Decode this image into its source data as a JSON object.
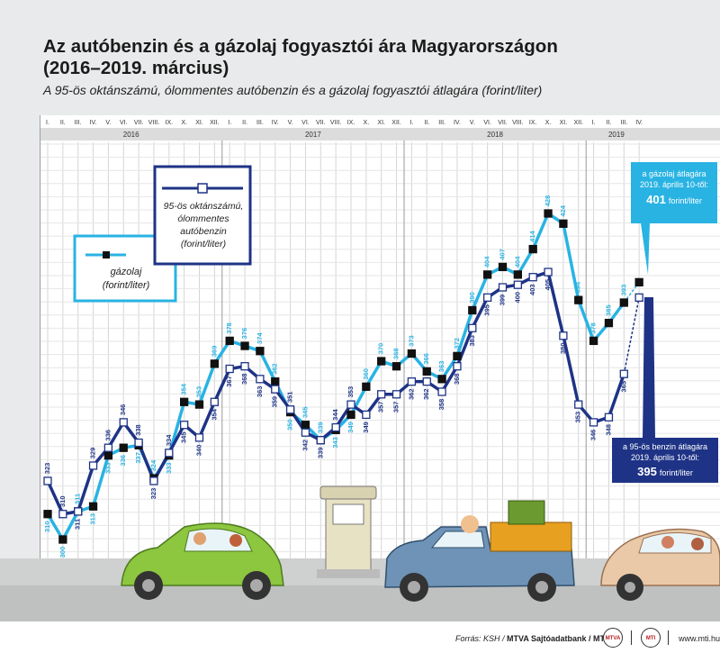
{
  "title": "Az autóbenzin és a gázolaj fogyasztói ára Magyarországon (2016–2019. március)",
  "subtitle": "A 95-ös oktánszámú, ólommentes autóbenzin és a gázolaj fogyasztói átlagára (forint/liter)",
  "months": [
    "I.",
    "II.",
    "III.",
    "IV.",
    "V.",
    "VI.",
    "VII.",
    "VIII.",
    "IX.",
    "X.",
    "XI.",
    "XII."
  ],
  "years": [
    "2016",
    "2017",
    "2018",
    "2019"
  ],
  "legend": {
    "petrol": "95-ös oktánszámú, ólommentes autóbenzin (forint/liter)",
    "diesel": "gázolaj (forint/liter)"
  },
  "callouts": {
    "diesel": {
      "line1": "a gázolaj átlagára",
      "line2": "2019. április 10-től:",
      "value": "401",
      "unit": "forint/liter"
    },
    "petrol": {
      "line1": "a 95-ös benzin átlagára",
      "line2": "2019. április 10-től:",
      "value": "395",
      "unit": "forint/liter"
    }
  },
  "footer": {
    "source_label": "Forrás: KSH / ",
    "source_bold": "MTVA Sajtóadatbank / MTI",
    "web": "www.mti.hu",
    "logo1": "MTVA",
    "logo2": "MTI"
  },
  "colors": {
    "diesel": "#29b3e3",
    "petrol": "#1e3386",
    "year_band": "#dcdcdc",
    "header_band": "#bdbdbd"
  },
  "chart_data": {
    "type": "line",
    "title": "Az autóbenzin és a gázolaj fogyasztói ára Magyarországon (2016–2019. március)",
    "ylabel": "forint/liter",
    "x": [
      "2016-I.",
      "2016-II.",
      "2016-III.",
      "2016-IV.",
      "2016-V.",
      "2016-VI.",
      "2016-VII.",
      "2016-VIII.",
      "2016-IX.",
      "2016-X.",
      "2016-XI.",
      "2016-XII.",
      "2017-I.",
      "2017-II.",
      "2017-III.",
      "2017-IV.",
      "2017-V.",
      "2017-VI.",
      "2017-VII.",
      "2017-VIII.",
      "2017-IX.",
      "2017-X.",
      "2017-XI.",
      "2017-XII.",
      "2018-I.",
      "2018-II.",
      "2018-III.",
      "2018-IV.",
      "2018-V.",
      "2018-VI.",
      "2018-VII.",
      "2018-VIII.",
      "2018-IX.",
      "2018-X.",
      "2018-XI.",
      "2018-XII.",
      "2019-I.",
      "2019-II.",
      "2019-III.",
      "2019-IV."
    ],
    "series": [
      {
        "name": "gázolaj (forint/liter)",
        "values": [
          310,
          300,
          311,
          313,
          333,
          336,
          337,
          324,
          333,
          354,
          353,
          369,
          378,
          376,
          374,
          362,
          350,
          345,
          339,
          343,
          349,
          360,
          370,
          368,
          373,
          366,
          363,
          372,
          390,
          404,
          407,
          404,
          414,
          428,
          424,
          394,
          378,
          385,
          393,
          401
        ]
      },
      {
        "name": "95-ös oktánszámú, ólommentes autóbenzin (forint/liter)",
        "values": [
          323,
          310,
          311,
          329,
          336,
          346,
          338,
          323,
          334,
          345,
          340,
          354,
          367,
          368,
          363,
          359,
          351,
          342,
          339,
          344,
          353,
          349,
          357,
          357,
          362,
          362,
          358,
          368,
          383,
          395,
          399,
          400,
          403,
          405,
          380,
          353,
          346,
          348,
          365,
          395
        ]
      }
    ],
    "ylim": [
      290,
      440
    ],
    "grid": true,
    "legend": "top-left"
  }
}
